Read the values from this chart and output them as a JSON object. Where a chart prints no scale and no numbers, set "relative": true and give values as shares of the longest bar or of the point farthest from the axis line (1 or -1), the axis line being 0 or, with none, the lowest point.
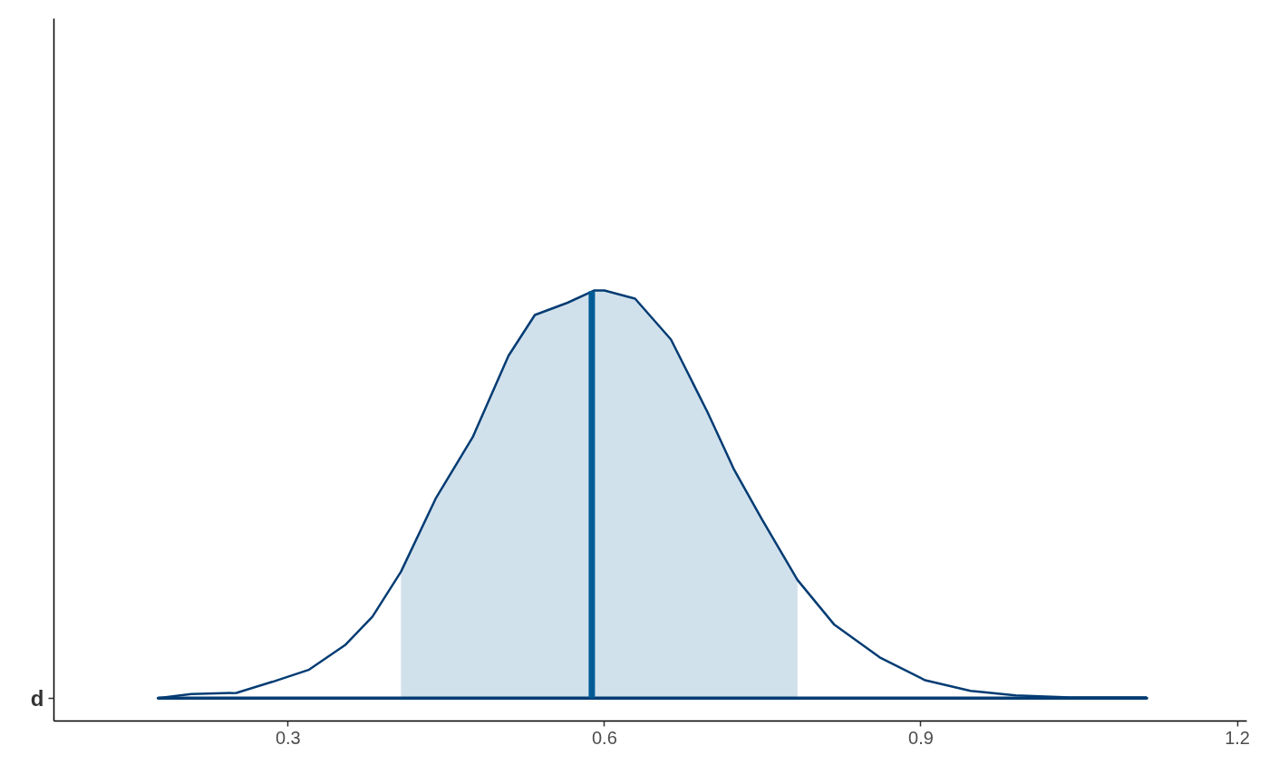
{
  "chart_data": {
    "type": "area",
    "relative": true,
    "x": [
      0.177,
      0.208,
      0.251,
      0.285,
      0.32,
      0.354,
      0.38,
      0.407,
      0.44,
      0.475,
      0.509,
      0.534,
      0.565,
      0.59,
      0.6,
      0.629,
      0.663,
      0.698,
      0.723,
      0.749,
      0.783,
      0.818,
      0.861,
      0.904,
      0.947,
      0.99,
      1.041,
      1.114
    ],
    "series": [
      {
        "color": "#d1e1ec",
        "x": [
          0.407,
          0.44,
          0.475,
          0.509,
          0.534,
          0.565,
          0.59,
          0.6,
          0.629,
          0.663,
          0.698,
          0.723,
          0.749,
          0.783
        ],
        "values": [
          0.31,
          0.49,
          0.64,
          0.84,
          0.94,
          0.97,
          1.0,
          1.0,
          0.98,
          0.88,
          0.7,
          0.56,
          0.44,
          0.29
        ]
      },
      {
        "name": "d",
        "color": "#033c73",
        "values": [
          0.0,
          0.01,
          0.013,
          0.04,
          0.07,
          0.13,
          0.2,
          0.31,
          0.49,
          0.64,
          0.84,
          0.94,
          0.97,
          1.0,
          1.0,
          0.98,
          0.88,
          0.7,
          0.56,
          0.44,
          0.29,
          0.18,
          0.1,
          0.044,
          0.018,
          0.007,
          0.002,
          0.002
        ]
      }
    ],
    "xlim": [
      0.078,
      1.209
    ],
    "xticks": [
      0.3,
      0.6,
      0.9,
      1.2
    ],
    "ref_lines": [
      {
        "axis": "x",
        "value": 0.588,
        "color": "#005b96"
      }
    ],
    "grid": false
  }
}
